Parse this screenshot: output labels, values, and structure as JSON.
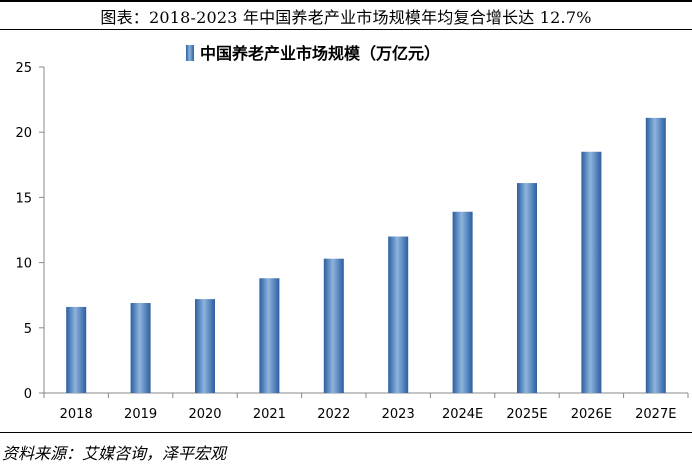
{
  "figure": {
    "title": "图表：2018-2023 年中国养老产业市场规模年均复合增长达 12.7%",
    "source": "资料来源：艾媒咨询，泽平宏观"
  },
  "colors": {
    "bar_dark": "#2a5fa0",
    "bar_light": "#8fb4de",
    "axis": "#888888"
  },
  "chart_data": {
    "type": "bar",
    "categories": [
      "2018",
      "2019",
      "2020",
      "2021",
      "2022",
      "2023",
      "2024E",
      "2025E",
      "2026E",
      "2027E"
    ],
    "series": [
      {
        "name": "中国养老产业市场规模（万亿元）",
        "values": [
          6.6,
          6.9,
          7.2,
          8.8,
          10.3,
          12.0,
          13.9,
          16.1,
          18.5,
          21.1
        ]
      }
    ],
    "ylim": [
      0,
      25
    ],
    "yticks": [
      0,
      5,
      10,
      15,
      20,
      25
    ],
    "xlabel": "",
    "ylabel": "",
    "grid": false,
    "legend_position": "top"
  }
}
